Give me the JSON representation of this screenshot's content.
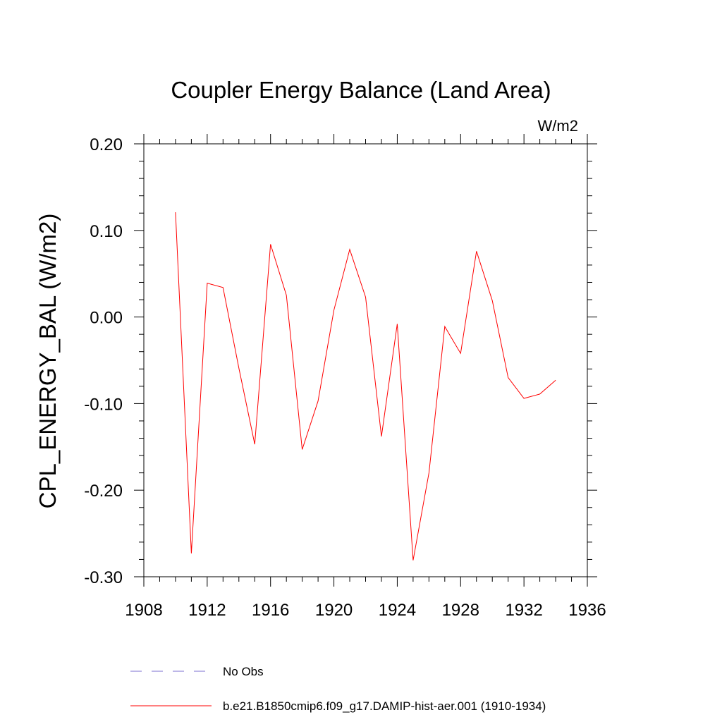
{
  "chart_data": {
    "type": "line",
    "title": "Coupler Energy Balance (Land Area)",
    "units_label": "W/m2",
    "ylabel": "CPL_ENERGY_BAL  (W/m2)",
    "xlabel": "",
    "xlim": [
      1908,
      1936
    ],
    "ylim": [
      -0.3,
      0.2
    ],
    "xticks": [
      1908,
      1912,
      1916,
      1920,
      1924,
      1928,
      1932,
      1936
    ],
    "xtick_labels": [
      "1908",
      "1912",
      "1916",
      "1920",
      "1924",
      "1928",
      "1932",
      "1936"
    ],
    "yticks": [
      -0.3,
      -0.2,
      -0.1,
      0.0,
      0.1,
      0.2
    ],
    "ytick_labels": [
      "-0.30",
      "-0.20",
      "-0.10",
      "0.00",
      "0.10",
      "0.20"
    ],
    "grid": false,
    "legend_position": "bottom",
    "series": [
      {
        "name": "b.e21.B1850cmip6.f09_g17.DAMIP-hist-aer.001 (1910-1934)",
        "color": "#ff0000",
        "dash": "solid",
        "x": [
          1910,
          1911,
          1912,
          1913,
          1914,
          1915,
          1916,
          1917,
          1918,
          1919,
          1920,
          1921,
          1922,
          1923,
          1924,
          1925,
          1926,
          1927,
          1928,
          1929,
          1930,
          1931,
          1932,
          1933,
          1934
        ],
        "y": [
          0.121,
          -0.273,
          0.039,
          0.034,
          -0.059,
          -0.147,
          0.084,
          0.025,
          -0.153,
          -0.097,
          0.008,
          0.078,
          0.023,
          -0.138,
          -0.008,
          -0.281,
          -0.18,
          -0.011,
          -0.042,
          0.076,
          0.019,
          -0.07,
          -0.094,
          -0.089,
          -0.073
        ]
      }
    ],
    "legend": [
      {
        "label": "No Obs",
        "color": "#7b6fd0",
        "dash": "dashed"
      },
      {
        "label": "b.e21.B1850cmip6.f09_g17.DAMIP-hist-aer.001 (1910-1934)",
        "color": "#ff0000",
        "dash": "solid"
      }
    ]
  }
}
